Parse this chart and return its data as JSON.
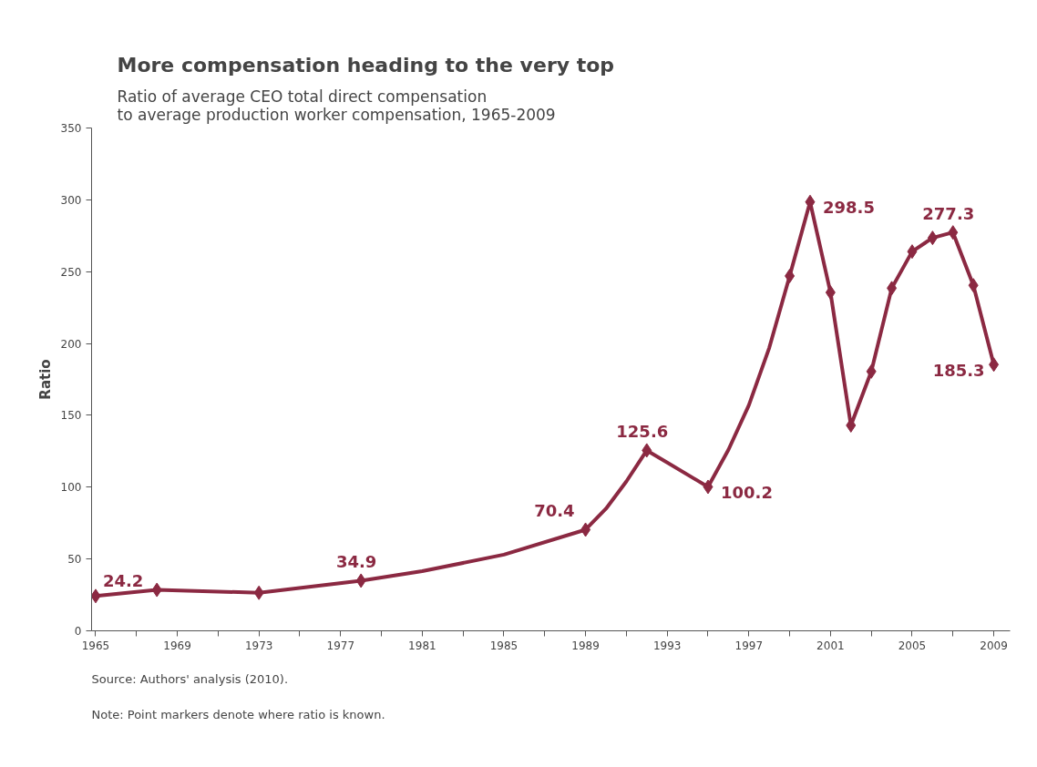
{
  "chart_data": {
    "type": "line",
    "title": "More compensation heading to the very top",
    "subtitle": "Ratio of  average CEO total direct compensation\nto average production worker compensation, 1965-2009",
    "ylabel": "Ratio",
    "annotations": [
      "Source: Authors' analysis (2010).",
      "Note: Point markers denote where ratio is known."
    ],
    "series": [
      {
        "type": "line",
        "color": "#8b2942",
        "marker": "none",
        "x": [
          1965,
          1968,
          1973,
          1978,
          1981,
          1985,
          1989,
          1990,
          1991,
          1992,
          1995,
          1996,
          1997,
          1998,
          1999,
          2000,
          2001,
          2002,
          2003,
          2004,
          2005,
          2006,
          2007,
          2008,
          2009
        ],
        "values": [
          24.2,
          28.5,
          26.5,
          34.9,
          41.5,
          53,
          70.4,
          85,
          104,
          125.6,
          100.2,
          126,
          157,
          197,
          247,
          298.5,
          235.5,
          143,
          180.5,
          238.5,
          264,
          273.5,
          277.3,
          240.5,
          185.3
        ]
      },
      {
        "type": "scatter",
        "color": "#8b2942",
        "marker": "diamond",
        "x": [
          1965,
          1968,
          1973,
          1978,
          1989,
          1992,
          1995,
          1999,
          2000,
          2001,
          2002,
          2003,
          2004,
          2005,
          2006,
          2007,
          2008,
          2009
        ],
        "values": [
          24.2,
          28.5,
          26.5,
          34.9,
          70.4,
          125.6,
          100.2,
          247,
          298.5,
          235.5,
          143,
          180.5,
          238.5,
          264,
          273.5,
          277.3,
          240.5,
          185.3
        ],
        "value_labels": [
          "24.2",
          null,
          null,
          "34.9",
          "70.4",
          "125.6",
          "100.2",
          null,
          "298.5",
          null,
          null,
          null,
          null,
          null,
          null,
          "277.3",
          null,
          "185.3"
        ]
      }
    ],
    "xlim": [
      1964.8,
      2009.8
    ],
    "ylim": [
      0,
      350
    ],
    "xticks": [
      1965,
      {
        "value": 1967,
        "label": null
      },
      1969,
      {
        "value": 1971,
        "label": null
      },
      1973,
      {
        "value": 1975,
        "label": null
      },
      1977,
      {
        "value": 1979,
        "label": null
      },
      1981,
      {
        "value": 1983,
        "label": null
      },
      1985,
      {
        "value": 1987,
        "label": null
      },
      1989,
      {
        "value": 1991,
        "label": null
      },
      1993,
      {
        "value": 1995,
        "label": null
      },
      1997,
      {
        "value": 1999,
        "label": null
      },
      2001,
      {
        "value": 2003,
        "label": null
      },
      2005,
      {
        "value": 2007,
        "label": null
      },
      2009
    ],
    "yticks": [
      0,
      50,
      100,
      150,
      200,
      250,
      300,
      350
    ],
    "grid": false
  }
}
